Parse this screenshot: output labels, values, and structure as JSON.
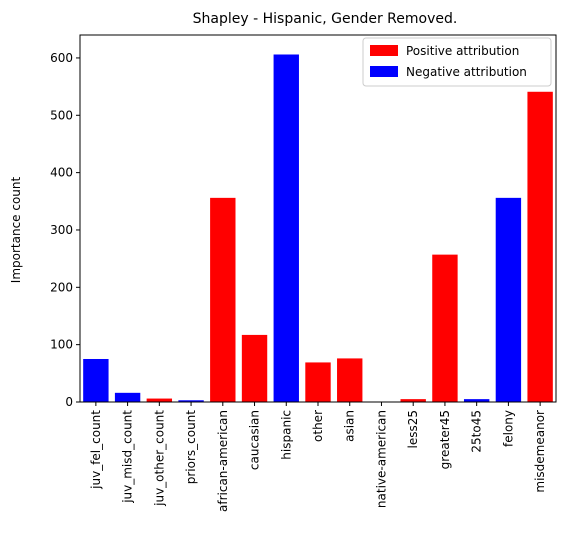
{
  "chart_data": {
    "type": "bar",
    "title": "Shapley - Hispanic, Gender Removed.",
    "xlabel": "",
    "ylabel": "Importance count",
    "ylim": [
      0,
      640
    ],
    "yticks": [
      0,
      100,
      200,
      300,
      400,
      500,
      600
    ],
    "grid": false,
    "legend_position": "top-right",
    "legend": [
      {
        "label": "Positive attribution",
        "color": "#ff0000"
      },
      {
        "label": "Negative attribution",
        "color": "#0000ff"
      }
    ],
    "categories": [
      "juv_fel_count",
      "juv_misd_count",
      "juv_other_count",
      "priors_count",
      "african-american",
      "caucasian",
      "hispanic",
      "other",
      "asian",
      "native-american",
      "less25",
      "greater45",
      "25to45",
      "felony",
      "misdemeanor"
    ],
    "values": [
      75,
      16,
      6,
      3,
      356,
      117,
      606,
      69,
      76,
      0,
      5,
      257,
      5,
      356,
      541
    ],
    "colors": [
      "#0000ff",
      "#0000ff",
      "#ff0000",
      "#0000ff",
      "#ff0000",
      "#ff0000",
      "#0000ff",
      "#ff0000",
      "#ff0000",
      "#ff0000",
      "#ff0000",
      "#ff0000",
      "#0000ff",
      "#0000ff",
      "#ff0000"
    ]
  }
}
